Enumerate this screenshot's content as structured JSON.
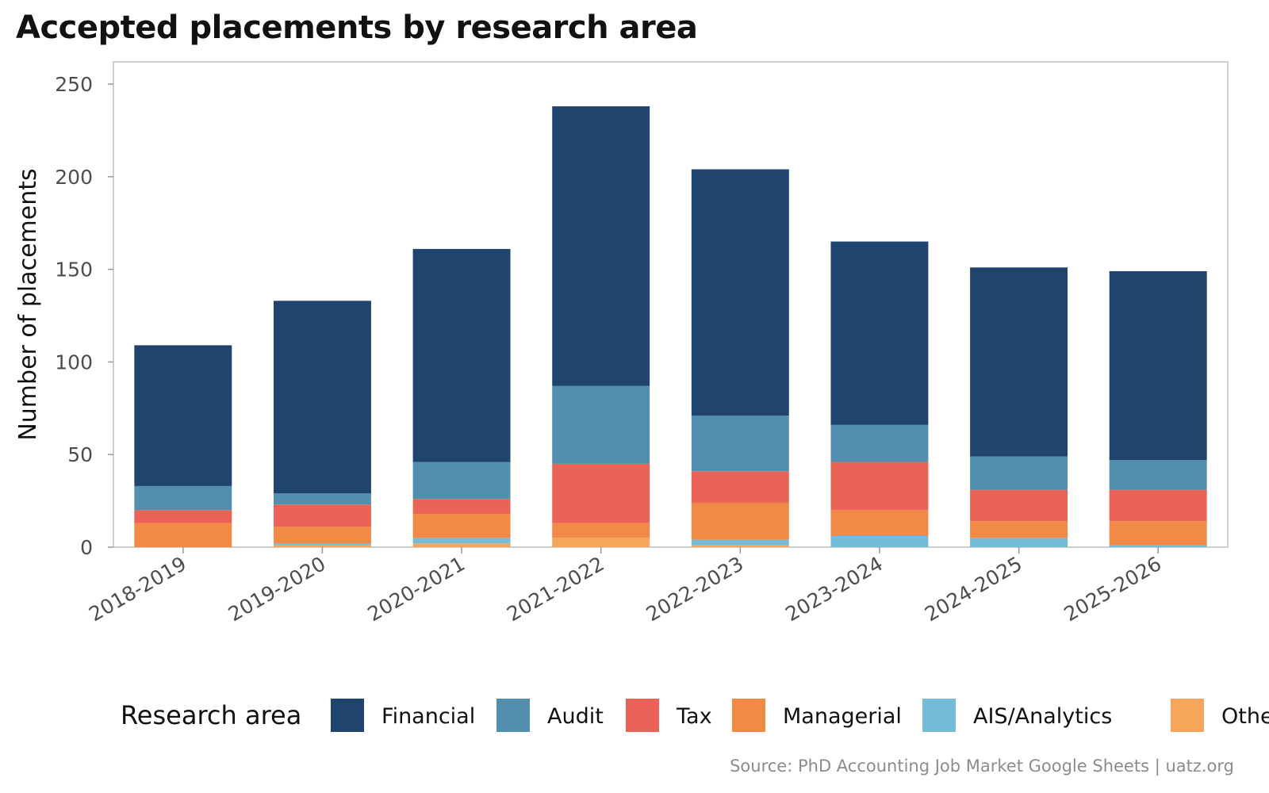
{
  "chart_data": {
    "type": "bar",
    "stacked": true,
    "title": "Accepted placements by research area",
    "ylabel": "Number of placements",
    "xlabel": "",
    "ylim": [
      0,
      262
    ],
    "yticks": [
      0,
      50,
      100,
      150,
      200,
      250
    ],
    "categories": [
      "2018-2019",
      "2019-2020",
      "2020-2021",
      "2021-2022",
      "2022-2023",
      "2023-2024",
      "2024-2025",
      "2025-2026"
    ],
    "series": [
      {
        "name": "Other",
        "color": "#F5A65B",
        "values": [
          0,
          1,
          2,
          5,
          1,
          0,
          0,
          0
        ]
      },
      {
        "name": "AIS/Analytics",
        "color": "#74BBD8",
        "values": [
          0,
          1,
          3,
          0,
          3,
          6,
          5,
          1
        ]
      },
      {
        "name": "Managerial",
        "color": "#F08A46",
        "values": [
          13,
          9,
          13,
          8,
          20,
          14,
          9,
          13
        ]
      },
      {
        "name": "Tax",
        "color": "#E96456",
        "values": [
          7,
          12,
          8,
          32,
          17,
          26,
          17,
          17
        ]
      },
      {
        "name": "Audit",
        "color": "#528FAE",
        "values": [
          13,
          6,
          20,
          42,
          30,
          20,
          18,
          16
        ]
      },
      {
        "name": "Financial",
        "color": "#1F456E",
        "values": [
          76,
          104,
          115,
          151,
          133,
          99,
          102,
          102
        ]
      }
    ],
    "legend": {
      "title": "Research area",
      "position": "bottom",
      "order": [
        "Financial",
        "Audit",
        "Tax",
        "Managerial",
        "AIS/Analytics",
        "Other"
      ]
    },
    "grid": false
  },
  "source_note": "Source: PhD Accounting Job Market Google Sheets | uatz.org"
}
